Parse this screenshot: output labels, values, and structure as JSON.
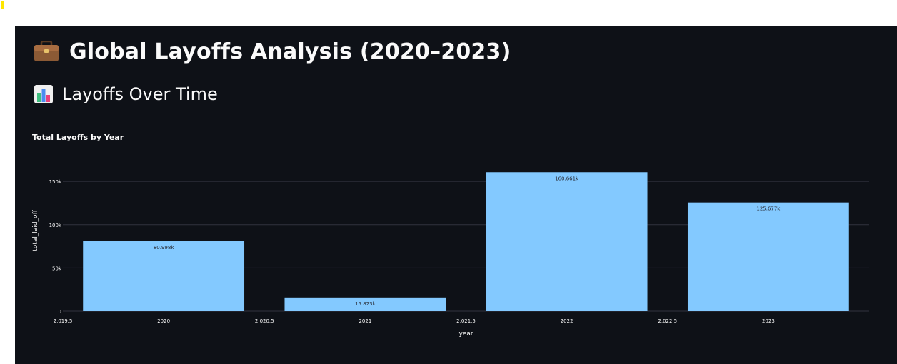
{
  "header": {
    "title": "Global Layoffs Analysis (2020–2023)",
    "title_icon": "briefcase-icon"
  },
  "section": {
    "title": "Layoffs Over Time",
    "icon": "bar-chart-icon"
  },
  "colors": {
    "background": "#0e1117",
    "bar": "#83c9ff",
    "grid": "#31333f",
    "text": "#fafafa"
  },
  "chart_data": {
    "type": "bar",
    "title": "Total Layoffs by Year",
    "xlabel": "year",
    "ylabel": "total_laid_off",
    "x": [
      2020,
      2021,
      2022,
      2023
    ],
    "values": [
      80998,
      15823,
      160661,
      125677
    ],
    "data_labels": [
      "80.998k",
      "15.823k",
      "160.661k",
      "125.677k"
    ],
    "x_range": [
      2019.5,
      2023.5
    ],
    "x_ticks": [
      2019.5,
      2020,
      2020.5,
      2021,
      2021.5,
      2022,
      2022.5,
      2023
    ],
    "x_tick_labels": [
      "2,019.5",
      "2020",
      "2,020.5",
      "2021",
      "2,021.5",
      "2022",
      "2,022.5",
      "2023"
    ],
    "ylim": [
      0,
      165000
    ],
    "y_ticks": [
      0,
      50000,
      100000,
      150000
    ],
    "y_tick_labels": [
      "0",
      "50k",
      "100k",
      "150k"
    ],
    "grid": true
  }
}
